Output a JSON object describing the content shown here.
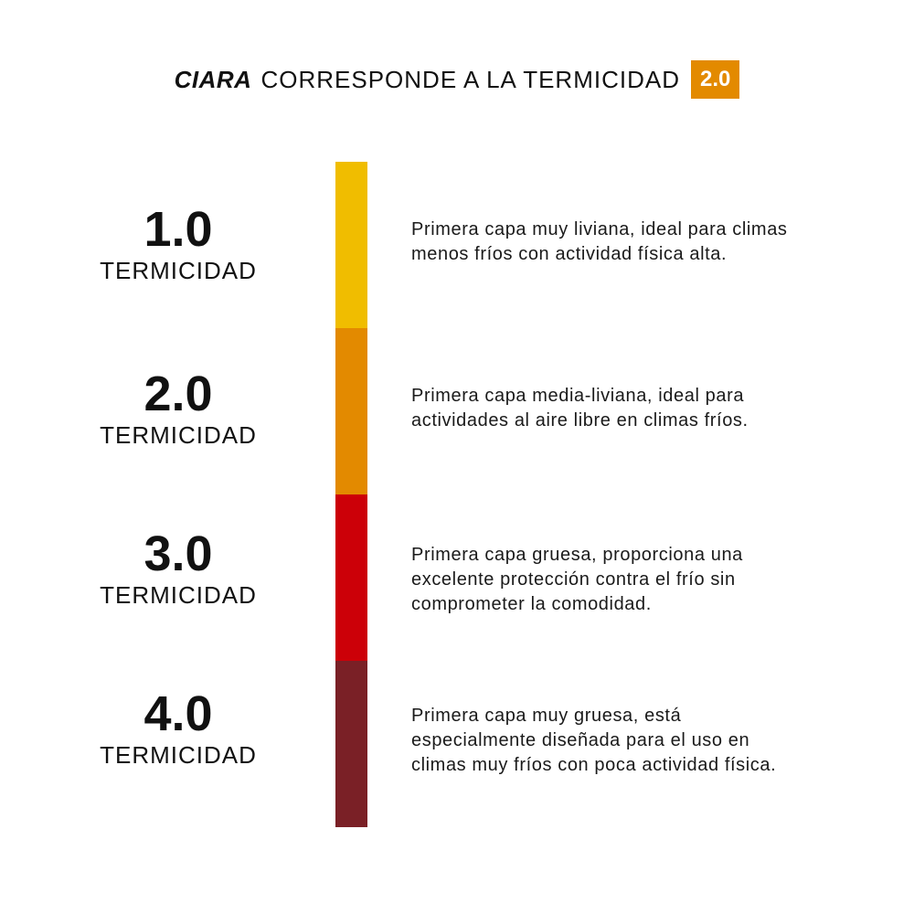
{
  "header": {
    "brand": "CIARA",
    "text": "CORRESPONDE A LA TERMICIDAD",
    "badge": "2.0",
    "badge_color": "#e38a00"
  },
  "levels": [
    {
      "value": "1.0",
      "label": "TERMICIDAD",
      "color": "#f0bd00",
      "description_lines": [
        "Primera capa muy liviana, ideal para climas",
        "menos fríos con actividad física alta."
      ]
    },
    {
      "value": "2.0",
      "label": "TERMICIDAD",
      "color": "#e38a00",
      "description_lines": [
        "Primera capa media-liviana, ideal para",
        "actividades al aire libre en climas fríos."
      ]
    },
    {
      "value": "3.0",
      "label": "TERMICIDAD",
      "color": "#cc0008",
      "description_lines": [
        "Primera capa gruesa, proporciona una",
        "excelente protección contra el frío sin",
        "comprometer la comodidad."
      ]
    },
    {
      "value": "4.0",
      "label": "TERMICIDAD",
      "color": "#7a2026",
      "description_lines": [
        "Primera capa muy gruesa, está",
        "especialmente diseñada para el uso en",
        "climas muy fríos con poca actividad física."
      ]
    }
  ]
}
